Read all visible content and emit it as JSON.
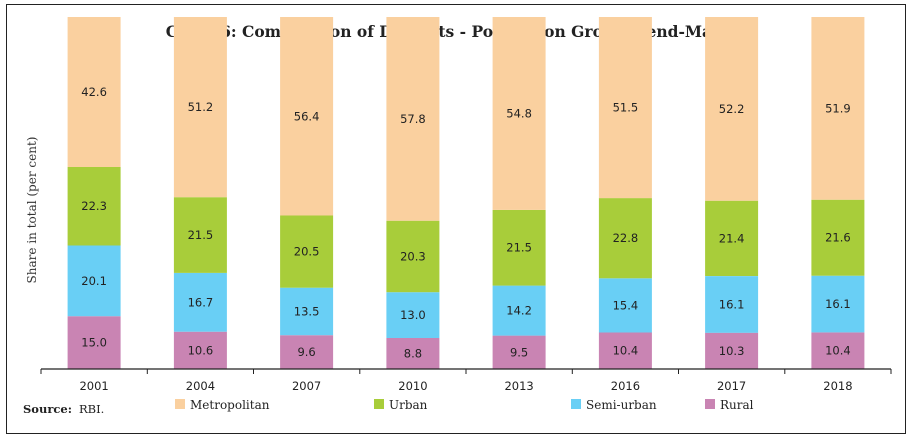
{
  "chart_data": {
    "type": "bar",
    "stacked": true,
    "title": "Chart 6: Composition of Deposits - Population Groups (end-March)",
    "xlabel": "",
    "ylabel": "Share in total (per cent)",
    "ylim": [
      0,
      100
    ],
    "grid": false,
    "legend_position": "bottom",
    "categories": [
      "2001",
      "2004",
      "2007",
      "2010",
      "2013",
      "2016",
      "2017",
      "2018"
    ],
    "series": [
      {
        "name": "Rural",
        "color": "#c984b3",
        "values": [
          15.0,
          10.6,
          9.6,
          8.8,
          9.5,
          10.4,
          10.3,
          10.4
        ]
      },
      {
        "name": "Semi-urban",
        "color": "#69cff5",
        "values": [
          20.1,
          16.7,
          13.5,
          13.0,
          14.2,
          15.4,
          16.1,
          16.1
        ]
      },
      {
        "name": "Urban",
        "color": "#a8cd3a",
        "values": [
          22.3,
          21.5,
          20.5,
          20.3,
          21.5,
          22.8,
          21.4,
          21.6
        ]
      },
      {
        "name": "Metropolitan",
        "color": "#fad09f",
        "values": [
          42.6,
          51.2,
          56.4,
          57.8,
          54.8,
          51.5,
          52.2,
          51.9
        ]
      }
    ],
    "legend_order": [
      "Metropolitan",
      "Urban",
      "Semi-urban",
      "Rural"
    ],
    "data_label_format": "one-decimal"
  },
  "source": {
    "label": "Source:",
    "text": "RBI."
  }
}
